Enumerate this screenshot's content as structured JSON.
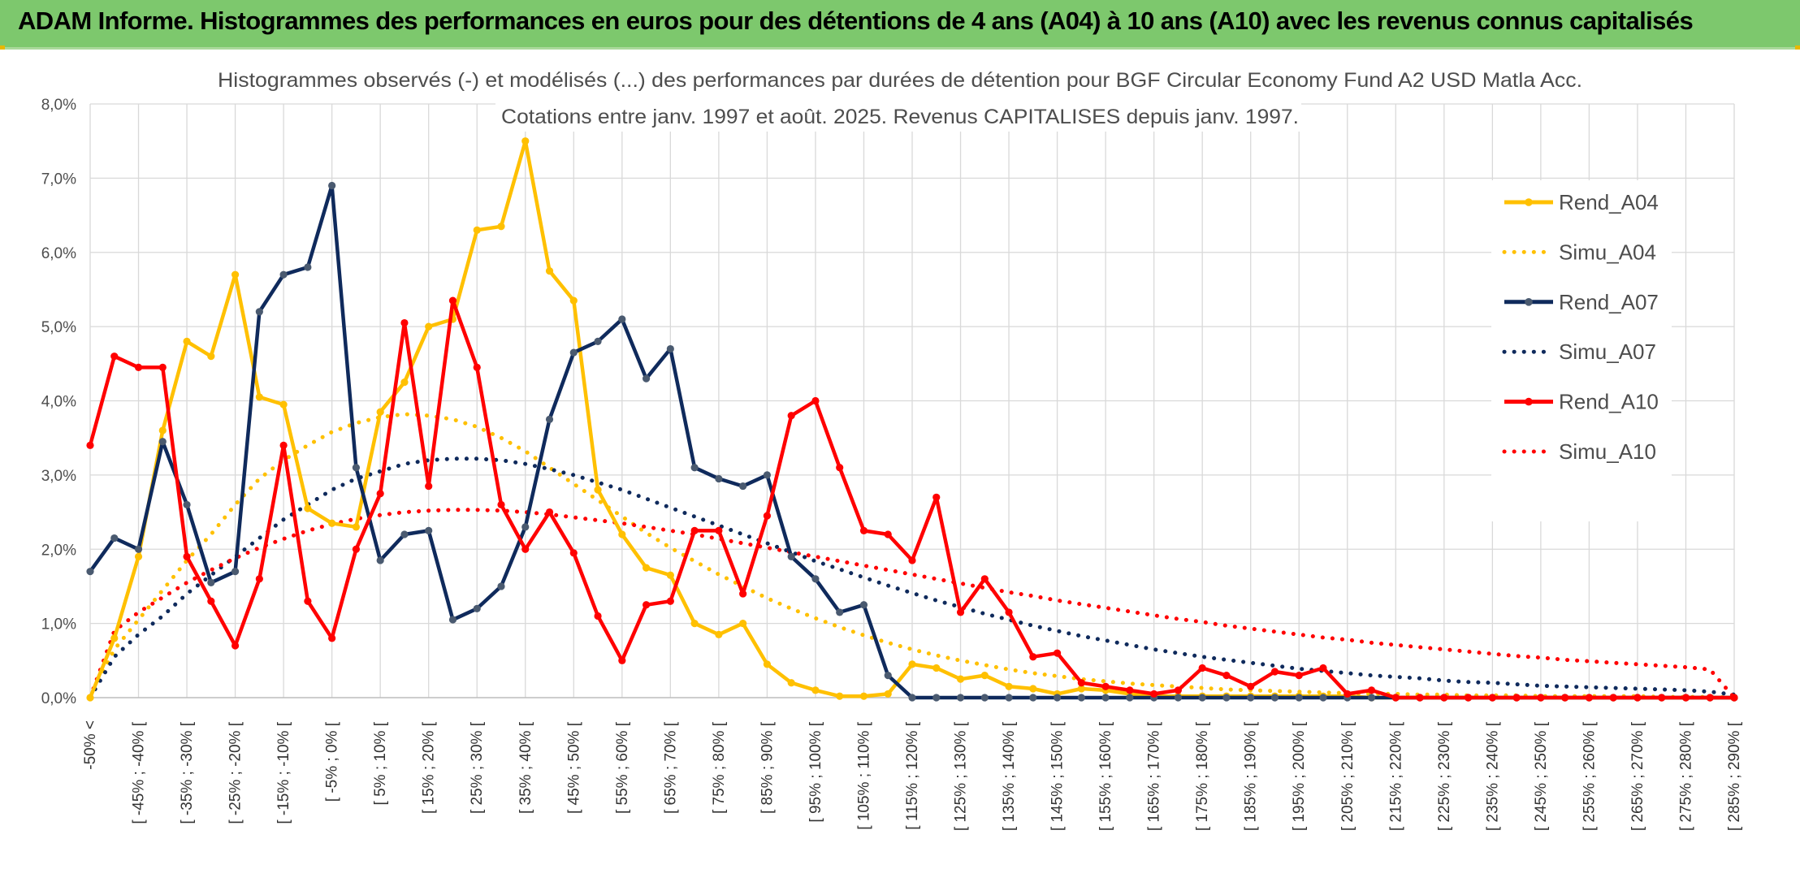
{
  "banner": {
    "title": "ADAM Informe. Histogrammes des performances en euros pour des détentions de 4 ans (A04) à 10 ans (A10) avec les revenus connus capitalisés",
    "background": "#7dc86d"
  },
  "chart_data": {
    "type": "line",
    "title": "Histogrammes observés (-) et modélisés (...) des performances par durées de détention pour BGF Circular Economy Fund A2 USD Matla Acc.",
    "subtitle": "Cotations entre janv. 1997 et août. 2025. Revenus CAPITALISES depuis janv. 1997.",
    "xlabel": "",
    "ylabel": "",
    "ylim": [
      0,
      8
    ],
    "y_ticks": [
      "0,0%",
      "1,0%",
      "2,0%",
      "3,0%",
      "4,0%",
      "5,0%",
      "6,0%",
      "7,0%",
      "8,0%"
    ],
    "grid": true,
    "legend_position": "right",
    "x_labels": [
      "-50% <",
      "[ -45% ; -40% [",
      "[ -35% ; -30% [",
      "[ -25% ; -20% [",
      "[ -15% ; -10% [",
      "[ -5% ; 0% [",
      "[ 5% ; 10% [",
      "[ 15% ; 20% [",
      "[ 25% ; 30% [",
      "[ 35% ; 40% [",
      "[ 45% ; 50% [",
      "[ 55% ; 60% [",
      "[ 65% ; 70% [",
      "[ 75% ; 80% [",
      "[ 85% ; 90% [",
      "[ 95% ; 100% [",
      "[ 105% ; 110% [",
      "[ 115% ; 120% [",
      "[ 125% ; 130% [",
      "[ 135% ; 140% [",
      "[ 145% ; 150% [",
      "[ 155% ; 160% [",
      "[ 165% ; 170% [",
      "[ 175% ; 180% [",
      "[ 185% ; 190% [",
      "[ 195% ; 200% [",
      "[ 205% ; 210% [",
      "[ 215% ; 220% [",
      "[ 225% ; 230% [",
      "[ 235% ; 240% [",
      "[ 245% ; 250% [",
      "[ 255% ; 260% [",
      "[ 265% ; 270% [",
      "[ 275% ; 280% [",
      "[ 285% ; 290% ["
    ],
    "categories_count": 69,
    "series": [
      {
        "name": "Rend_A04",
        "style": "solid",
        "color": "#ffc000",
        "values": [
          0.0,
          0.8,
          1.9,
          3.6,
          4.8,
          4.6,
          5.7,
          4.05,
          3.95,
          2.55,
          2.35,
          2.3,
          3.85,
          4.25,
          5.0,
          5.1,
          6.3,
          6.35,
          7.5,
          5.75,
          5.35,
          2.8,
          2.2,
          1.75,
          1.65,
          1.0,
          0.85,
          1.0,
          0.45,
          0.2,
          0.1,
          0.02,
          0.02,
          0.05,
          0.45,
          0.4,
          0.25,
          0.3,
          0.15,
          0.12,
          0.05,
          0.12,
          0.1,
          0.05,
          0.02,
          0.02,
          0.02,
          0.02,
          0.02,
          0.02,
          0.02,
          0.02,
          0.02,
          0.0,
          0.0,
          0.0,
          0.0,
          0.0,
          0.0,
          0.0,
          0.0,
          0.0,
          0.0,
          0.0,
          0.0,
          0.0,
          0.0,
          0.0,
          0.0
        ]
      },
      {
        "name": "Simu_A04",
        "style": "dotted",
        "color": "#ffc000",
        "values": [
          0.0,
          0.65,
          1.05,
          1.45,
          1.85,
          2.2,
          2.6,
          2.95,
          3.2,
          3.4,
          3.58,
          3.7,
          3.78,
          3.82,
          3.8,
          3.75,
          3.65,
          3.5,
          3.32,
          3.1,
          2.88,
          2.66,
          2.44,
          2.22,
          2.02,
          1.84,
          1.66,
          1.5,
          1.34,
          1.2,
          1.07,
          0.95,
          0.84,
          0.74,
          0.65,
          0.57,
          0.5,
          0.44,
          0.38,
          0.33,
          0.29,
          0.25,
          0.22,
          0.19,
          0.17,
          0.15,
          0.13,
          0.11,
          0.1,
          0.09,
          0.08,
          0.07,
          0.06,
          0.05,
          0.05,
          0.04,
          0.04,
          0.03,
          0.03,
          0.03,
          0.02,
          0.02,
          0.02,
          0.02,
          0.02,
          0.01,
          0.01,
          0.01,
          0.0
        ]
      },
      {
        "name": "Rend_A07",
        "style": "solid",
        "color": "#0f2a5c",
        "values": [
          1.7,
          2.15,
          2.0,
          3.45,
          2.6,
          1.55,
          1.7,
          5.2,
          5.7,
          5.8,
          6.9,
          3.1,
          1.85,
          2.2,
          2.25,
          1.05,
          1.2,
          1.5,
          2.3,
          3.75,
          4.65,
          4.8,
          5.1,
          4.3,
          4.7,
          3.1,
          2.95,
          2.85,
          3.0,
          1.9,
          1.6,
          1.15,
          1.25,
          0.3,
          0.0,
          0.0,
          0.0,
          0.0,
          0.0,
          0.0,
          0.0,
          0.0,
          0.0,
          0.0,
          0.0,
          0.0,
          0.0,
          0.0,
          0.0,
          0.0,
          0.0,
          0.0,
          0.0,
          0.0,
          0.0,
          0.0,
          0.0,
          0.0,
          0.0,
          0.0,
          0.0,
          0.0,
          0.0,
          0.0,
          0.0,
          0.0,
          0.0,
          0.0,
          0.0
        ]
      },
      {
        "name": "Simu_A07",
        "style": "dotted",
        "color": "#0f2a5c",
        "values": [
          0.0,
          0.55,
          0.85,
          1.1,
          1.4,
          1.65,
          1.9,
          2.15,
          2.4,
          2.6,
          2.8,
          2.95,
          3.05,
          3.15,
          3.2,
          3.22,
          3.22,
          3.2,
          3.15,
          3.08,
          3.0,
          2.9,
          2.8,
          2.68,
          2.56,
          2.44,
          2.32,
          2.2,
          2.08,
          1.96,
          1.84,
          1.73,
          1.62,
          1.51,
          1.41,
          1.31,
          1.22,
          1.13,
          1.05,
          0.97,
          0.9,
          0.83,
          0.77,
          0.71,
          0.65,
          0.6,
          0.55,
          0.51,
          0.47,
          0.43,
          0.39,
          0.36,
          0.33,
          0.3,
          0.28,
          0.26,
          0.23,
          0.21,
          0.2,
          0.18,
          0.16,
          0.15,
          0.14,
          0.13,
          0.12,
          0.11,
          0.1,
          0.08,
          0.04
        ]
      },
      {
        "name": "Rend_A10",
        "style": "solid",
        "color": "#ff0000",
        "values": [
          3.4,
          4.6,
          4.45,
          4.45,
          1.9,
          1.3,
          0.7,
          1.6,
          3.4,
          1.3,
          0.8,
          2.0,
          2.75,
          5.05,
          2.85,
          5.35,
          4.45,
          2.6,
          2.0,
          2.5,
          1.95,
          1.1,
          0.5,
          1.25,
          1.3,
          2.25,
          2.25,
          1.4,
          2.45,
          3.8,
          4.0,
          3.1,
          2.25,
          2.2,
          1.85,
          2.7,
          1.15,
          1.6,
          1.15,
          0.55,
          0.6,
          0.2,
          0.15,
          0.1,
          0.05,
          0.1,
          0.4,
          0.3,
          0.15,
          0.35,
          0.3,
          0.4,
          0.05,
          0.1,
          0.0,
          0.0,
          0.0,
          0.0,
          0.0,
          0.0,
          0.0,
          0.0,
          0.0,
          0.0,
          0.0,
          0.0,
          0.0,
          0.0,
          0.0
        ]
      },
      {
        "name": "Simu_A10",
        "style": "dotted",
        "color": "#ff0000",
        "values": [
          0.0,
          0.9,
          1.15,
          1.35,
          1.55,
          1.72,
          1.88,
          2.02,
          2.14,
          2.25,
          2.34,
          2.41,
          2.46,
          2.5,
          2.52,
          2.53,
          2.53,
          2.52,
          2.5,
          2.47,
          2.43,
          2.39,
          2.35,
          2.3,
          2.25,
          2.2,
          2.14,
          2.08,
          2.02,
          1.96,
          1.9,
          1.84,
          1.78,
          1.72,
          1.66,
          1.6,
          1.54,
          1.48,
          1.42,
          1.37,
          1.31,
          1.26,
          1.21,
          1.16,
          1.11,
          1.06,
          1.02,
          0.97,
          0.93,
          0.89,
          0.85,
          0.81,
          0.78,
          0.74,
          0.71,
          0.68,
          0.65,
          0.62,
          0.59,
          0.56,
          0.54,
          0.51,
          0.49,
          0.47,
          0.45,
          0.43,
          0.41,
          0.38,
          0.0
        ]
      }
    ]
  }
}
